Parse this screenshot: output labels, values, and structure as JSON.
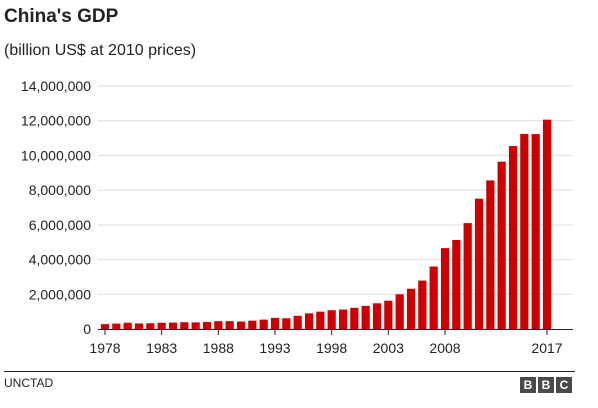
{
  "header": {
    "title": "China's GDP",
    "subtitle": "(billion US$ at 2010 prices)"
  },
  "footer": {
    "source": "UNCTAD",
    "logo_letters": [
      "B",
      "B",
      "C"
    ]
  },
  "colors": {
    "bar": "#cc0000",
    "grid": "#dddddd",
    "axis": "#222222",
    "text": "#222222"
  },
  "chart_data": {
    "type": "bar",
    "title": "China's GDP",
    "subtitle": "(billion US$ at 2010 prices)",
    "xlabel": "",
    "ylabel": "",
    "ylim": [
      0,
      14000000
    ],
    "yticks": [
      0,
      2000000,
      4000000,
      6000000,
      8000000,
      10000000,
      12000000,
      14000000
    ],
    "ytick_labels": [
      "0",
      "2,000,000",
      "4,000,000",
      "6,000,000",
      "8,000,000",
      "10,000,000",
      "12,000,000",
      "14,000,000"
    ],
    "xtick_labels": [
      "1978",
      "1983",
      "1988",
      "1993",
      "1998",
      "2003",
      "2008",
      "2017"
    ],
    "grid": true,
    "categories": [
      "1978",
      "1979",
      "1980",
      "1981",
      "1982",
      "1983",
      "1984",
      "1985",
      "1986",
      "1987",
      "1988",
      "1989",
      "1990",
      "1991",
      "1992",
      "1993",
      "1994",
      "1995",
      "1996",
      "1997",
      "1998",
      "1999",
      "2000",
      "2001",
      "2002",
      "2003",
      "2004",
      "2005",
      "2006",
      "2007",
      "2008",
      "2009",
      "2010",
      "2011",
      "2012",
      "2013",
      "2014",
      "2015",
      "2016",
      "2017"
    ],
    "values": [
      280000,
      310000,
      360000,
      320000,
      330000,
      360000,
      370000,
      390000,
      380000,
      400000,
      450000,
      450000,
      430000,
      480000,
      540000,
      640000,
      620000,
      760000,
      900000,
      1000000,
      1080000,
      1120000,
      1220000,
      1330000,
      1480000,
      1630000,
      2000000,
      2320000,
      2790000,
      3600000,
      4660000,
      5130000,
      6100000,
      7510000,
      8560000,
      9640000,
      10540000,
      11240000,
      11230000,
      12060000
    ]
  }
}
